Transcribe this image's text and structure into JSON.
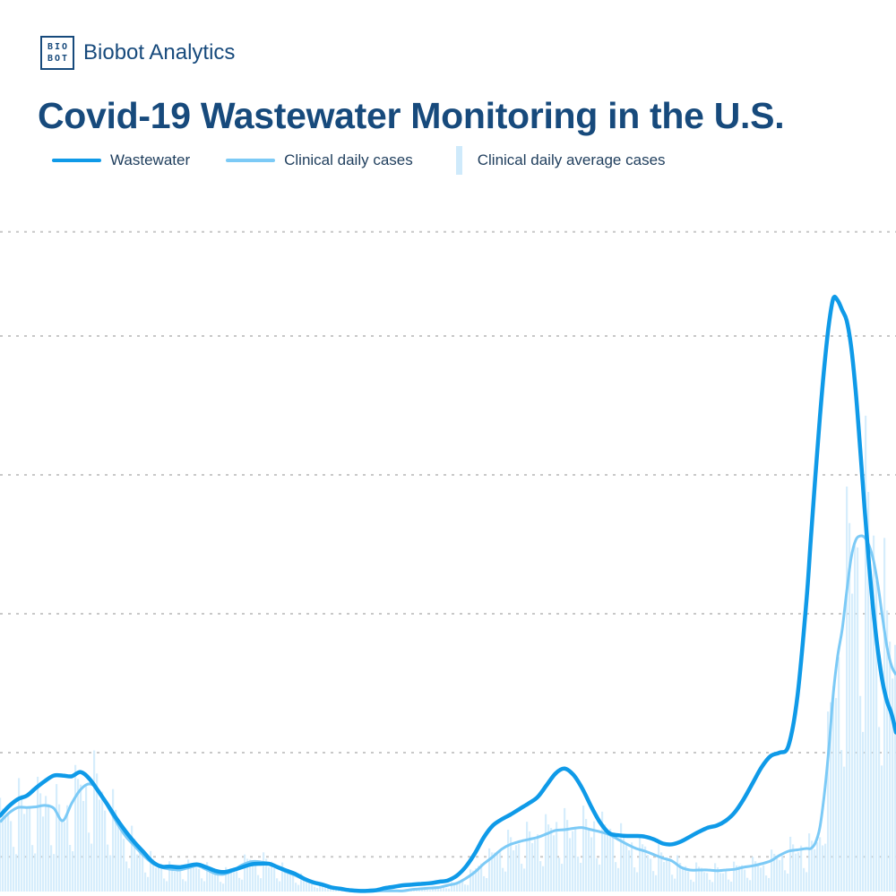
{
  "brand": {
    "logo_line1": "BIO",
    "logo_line2": "BOT",
    "name": "Biobot Analytics"
  },
  "colors": {
    "wastewater": "#0f9ae8",
    "clinical_line": "#7ccaf6",
    "clinical_bars": "#cfeafb",
    "grid": "#c8c8c8",
    "text": "#174a7c"
  },
  "chart_data": {
    "type": "line",
    "title": "Covid-19 Wastewater Monitoring in the U.S.",
    "xlabel": "",
    "ylabel": "",
    "ylim": [
      0,
      100
    ],
    "x": [
      0,
      10,
      20,
      30,
      40,
      50,
      60,
      70,
      80,
      90,
      100,
      110,
      120,
      130,
      140,
      150,
      160,
      170,
      180,
      190,
      200,
      210,
      220,
      230,
      240,
      250,
      260,
      270,
      280,
      290,
      300,
      310,
      320,
      330,
      340,
      350,
      360,
      370,
      380,
      390,
      400,
      410,
      420,
      430,
      440,
      450,
      460,
      470,
      480,
      490,
      500,
      510,
      520,
      530,
      540,
      550,
      560,
      570,
      580,
      590,
      600,
      610,
      620,
      630,
      640,
      650,
      660,
      670,
      680,
      690,
      700,
      710,
      720,
      730,
      740,
      750,
      760,
      770,
      780,
      790,
      800,
      810,
      820,
      830,
      840,
      850,
      860,
      870,
      880,
      890,
      900,
      905,
      910,
      915,
      920,
      925,
      930,
      935,
      940,
      945,
      950,
      955,
      960,
      965,
      970,
      975,
      980,
      985,
      990,
      995,
      1000
    ],
    "grid_y": [
      5,
      20,
      40,
      60,
      80,
      95
    ],
    "legend_position": "top-left",
    "grid": true,
    "series": [
      {
        "name": "Wastewater",
        "values": [
          10.9,
          12.3,
          13.3,
          13.8,
          14.9,
          15.9,
          16.7,
          16.7,
          16.6,
          17.2,
          16.2,
          14.4,
          12.5,
          10.5,
          8.7,
          7.1,
          5.7,
          4.3,
          3.6,
          3.6,
          3.5,
          3.7,
          3.9,
          3.5,
          3.0,
          2.8,
          3.1,
          3.5,
          3.9,
          4.0,
          4.0,
          3.5,
          3.0,
          2.5,
          1.8,
          1.3,
          1.0,
          0.6,
          0.4,
          0.2,
          0.1,
          0.1,
          0.2,
          0.5,
          0.7,
          0.9,
          1.0,
          1.1,
          1.2,
          1.4,
          1.6,
          2.3,
          3.6,
          5.5,
          7.8,
          9.5,
          10.4,
          11.1,
          11.9,
          12.7,
          13.6,
          15.3,
          17.0,
          17.7,
          16.8,
          14.8,
          12.2,
          9.9,
          8.4,
          8.1,
          8.0,
          8.0,
          7.9,
          7.5,
          6.9,
          6.8,
          7.2,
          7.9,
          8.6,
          9.2,
          9.5,
          10.2,
          11.4,
          13.3,
          15.6,
          17.9,
          19.5,
          20.0,
          21.0,
          28.1,
          41.8,
          50.9,
          59.8,
          68.2,
          75.6,
          81.6,
          85.4,
          85.1,
          83.7,
          82.2,
          78.4,
          72.1,
          63.8,
          55.1,
          47.0,
          40.1,
          34.5,
          30.2,
          27.4,
          25.6,
          22.9
        ]
      },
      {
        "name": "Clinical daily cases",
        "values": [
          10.0,
          11.3,
          12.1,
          12.1,
          12.2,
          12.4,
          12.0,
          10.2,
          12.7,
          14.7,
          15.5,
          14.6,
          12.3,
          10.0,
          8.0,
          6.6,
          5.2,
          4.1,
          3.5,
          3.2,
          3.1,
          3.4,
          3.7,
          3.2,
          2.6,
          2.5,
          3.0,
          3.8,
          4.3,
          4.3,
          4.0,
          3.4,
          2.8,
          2.3,
          1.7,
          1.3,
          0.9,
          0.6,
          0.4,
          0.2,
          0.1,
          0.1,
          0.1,
          0.1,
          0.1,
          0.1,
          0.3,
          0.4,
          0.5,
          0.6,
          0.9,
          1.2,
          1.9,
          2.8,
          4.0,
          5.0,
          6.1,
          6.8,
          7.2,
          7.5,
          7.8,
          8.3,
          8.8,
          8.9,
          9.1,
          9.2,
          8.9,
          8.6,
          8.2,
          7.5,
          6.8,
          6.2,
          5.8,
          5.3,
          4.8,
          4.4,
          3.5,
          3.1,
          3.1,
          3.1,
          3.0,
          3.1,
          3.2,
          3.5,
          3.7,
          4.0,
          4.4,
          5.2,
          5.8,
          6.0,
          6.2,
          6.2,
          7.0,
          9.2,
          14.0,
          20.5,
          28.5,
          34.0,
          37.8,
          43.2,
          48.1,
          50.6,
          51.2,
          51.0,
          49.8,
          47.6,
          44.0,
          39.4,
          35.2,
          32.5,
          31.2
        ]
      }
    ],
    "bars_series": {
      "name": "Clinical daily average cases"
    }
  }
}
